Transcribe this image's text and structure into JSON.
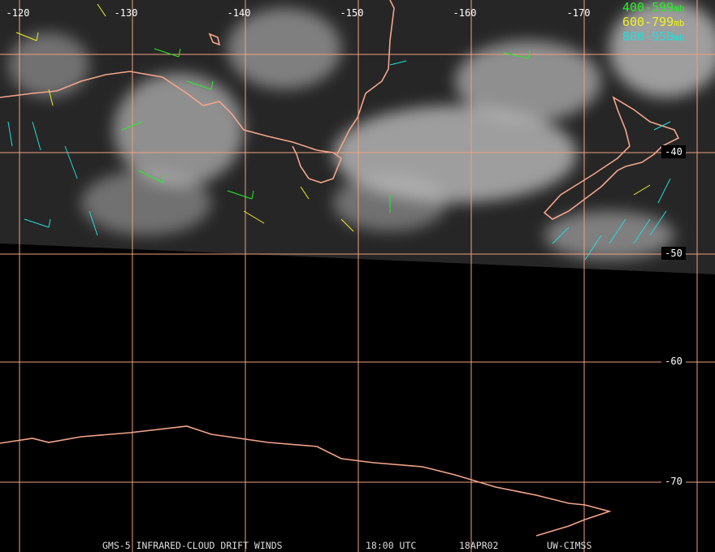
{
  "map": {
    "longitude_labels": [
      "-120",
      "-130",
      "-140",
      "-150",
      "-160",
      "-170"
    ],
    "latitude_labels": [
      "-40",
      "-50",
      "-60",
      "-70"
    ],
    "legend": [
      {
        "range": "400-599",
        "unit": "mb"
      },
      {
        "range": "600-799",
        "unit": "mb"
      },
      {
        "range": "800-950",
        "unit": "mb"
      }
    ],
    "footer": [
      "GMS-5 INFRARED-CLOUD DRIFT WINDS",
      "18:00 UTC",
      "18APR02",
      "UW-CIMSS"
    ]
  }
}
